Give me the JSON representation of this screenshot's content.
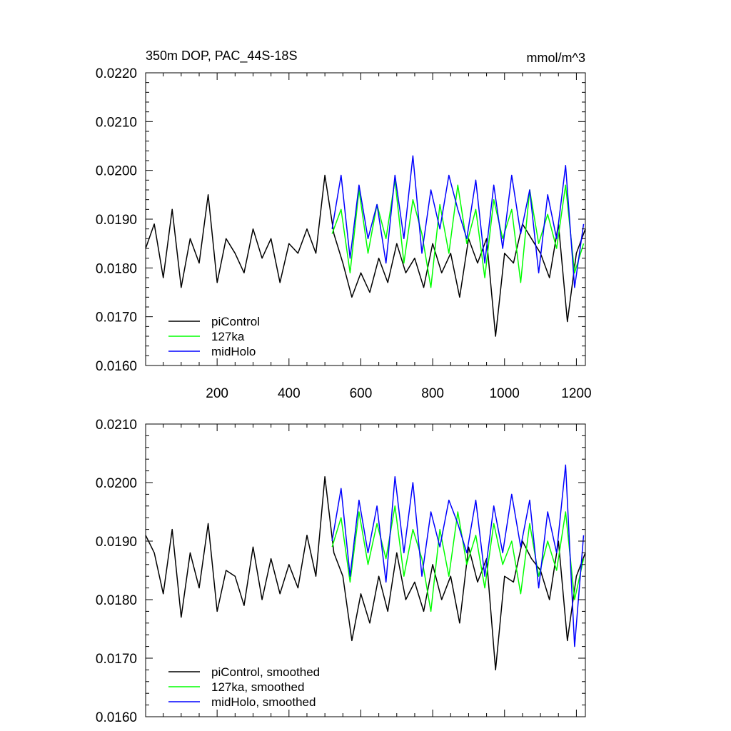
{
  "chart_data": [
    {
      "type": "line",
      "title": "350m DOP, PAC_44S-18S",
      "units_label": "mmol/m^3",
      "xlim": [
        1,
        1225
      ],
      "ylim": [
        0.016,
        0.022
      ],
      "x_ticks": [
        200,
        400,
        600,
        800,
        1000,
        1200
      ],
      "x_tick_labels": [
        "200",
        "400",
        "600",
        "800",
        "1000",
        "1200"
      ],
      "y_ticks": [
        0.016,
        0.017,
        0.018,
        0.019,
        0.02,
        0.021,
        0.022
      ],
      "y_tick_labels": [
        "0.0160",
        "0.0170",
        "0.0180",
        "0.0190",
        "0.0200",
        "0.0210",
        "0.0220"
      ],
      "legend_position": "bottom-left",
      "series": [
        {
          "name": "piControl",
          "color": "#000000",
          "x": [
            1,
            25,
            50,
            75,
            100,
            125,
            150,
            175,
            200,
            225,
            250,
            275,
            300,
            325,
            350,
            375,
            400,
            425,
            450,
            475,
            500,
            525,
            550,
            575,
            600,
            625,
            650,
            675,
            700,
            725,
            750,
            775,
            800,
            825,
            850,
            875,
            900,
            925,
            950,
            975,
            1000,
            1025,
            1050,
            1075,
            1100,
            1125,
            1150,
            1175,
            1200,
            1225
          ],
          "y": [
            0.0184,
            0.0189,
            0.0178,
            0.0192,
            0.0176,
            0.0186,
            0.0181,
            0.0195,
            0.0177,
            0.0186,
            0.0183,
            0.0179,
            0.0188,
            0.0182,
            0.0186,
            0.0177,
            0.0185,
            0.0183,
            0.0188,
            0.0183,
            0.0199,
            0.0187,
            0.0181,
            0.0174,
            0.0179,
            0.0175,
            0.0182,
            0.0177,
            0.0185,
            0.0179,
            0.0182,
            0.0176,
            0.0185,
            0.0179,
            0.0183,
            0.0174,
            0.0186,
            0.0181,
            0.0186,
            0.0166,
            0.0183,
            0.0181,
            0.0189,
            0.0186,
            0.0183,
            0.0178,
            0.0189,
            0.0169,
            0.0183,
            0.0188
          ]
        },
        {
          "name": "127ka",
          "color": "#00ff00",
          "x": [
            520,
            545,
            570,
            595,
            620,
            645,
            670,
            695,
            720,
            745,
            770,
            795,
            820,
            845,
            870,
            895,
            920,
            945,
            970,
            995,
            1020,
            1045,
            1070,
            1095,
            1120,
            1145,
            1170,
            1195,
            1220
          ],
          "y": [
            0.0187,
            0.0192,
            0.0179,
            0.0196,
            0.0183,
            0.0193,
            0.0186,
            0.0198,
            0.0181,
            0.0194,
            0.0187,
            0.0176,
            0.0193,
            0.0183,
            0.0197,
            0.0185,
            0.0192,
            0.0178,
            0.0194,
            0.0186,
            0.0192,
            0.0177,
            0.0196,
            0.0185,
            0.0191,
            0.0184,
            0.0197,
            0.0179,
            0.0185
          ]
        },
        {
          "name": "midHolo",
          "color": "#0000ff",
          "x": [
            520,
            545,
            570,
            595,
            620,
            645,
            670,
            695,
            720,
            745,
            770,
            795,
            820,
            845,
            870,
            895,
            920,
            945,
            970,
            995,
            1020,
            1045,
            1070,
            1095,
            1120,
            1145,
            1170,
            1195,
            1220
          ],
          "y": [
            0.0188,
            0.0199,
            0.0182,
            0.0197,
            0.0186,
            0.0193,
            0.0181,
            0.0199,
            0.0186,
            0.0203,
            0.0183,
            0.0196,
            0.0188,
            0.0199,
            0.0192,
            0.0186,
            0.0198,
            0.0181,
            0.0197,
            0.0184,
            0.0199,
            0.0187,
            0.0196,
            0.0179,
            0.0195,
            0.0186,
            0.0201,
            0.0176,
            0.0189
          ]
        }
      ]
    },
    {
      "type": "line",
      "xlim": [
        1,
        1225
      ],
      "ylim": [
        0.016,
        0.021
      ],
      "x_ticks": [
        200,
        400,
        600,
        800,
        1000,
        1200
      ],
      "y_ticks": [
        0.016,
        0.017,
        0.018,
        0.019,
        0.02,
        0.021
      ],
      "y_tick_labels": [
        "0.0160",
        "0.0170",
        "0.0180",
        "0.0190",
        "0.0200",
        "0.0210"
      ],
      "legend_position": "bottom-left",
      "series": [
        {
          "name": "piControl, smoothed",
          "color": "#000000",
          "x": [
            1,
            25,
            50,
            75,
            100,
            125,
            150,
            175,
            200,
            225,
            250,
            275,
            300,
            325,
            350,
            375,
            400,
            425,
            450,
            475,
            500,
            525,
            550,
            575,
            600,
            625,
            650,
            675,
            700,
            725,
            750,
            775,
            800,
            825,
            850,
            875,
            900,
            925,
            950,
            975,
            1000,
            1025,
            1050,
            1075,
            1100,
            1125,
            1150,
            1175,
            1200,
            1225
          ],
          "y": [
            0.0191,
            0.0188,
            0.0181,
            0.0192,
            0.0177,
            0.0188,
            0.0182,
            0.0193,
            0.0178,
            0.0185,
            0.0184,
            0.0179,
            0.0189,
            0.018,
            0.0187,
            0.0181,
            0.0186,
            0.0182,
            0.0191,
            0.0184,
            0.0201,
            0.0188,
            0.0184,
            0.0173,
            0.0181,
            0.0176,
            0.0184,
            0.0178,
            0.0188,
            0.018,
            0.0183,
            0.0178,
            0.0186,
            0.018,
            0.0184,
            0.0176,
            0.0189,
            0.0183,
            0.0187,
            0.0168,
            0.0184,
            0.0183,
            0.019,
            0.0187,
            0.0185,
            0.018,
            0.019,
            0.0173,
            0.0184,
            0.0188
          ]
        },
        {
          "name": "127ka, smoothed",
          "color": "#00ff00",
          "x": [
            520,
            545,
            570,
            595,
            620,
            645,
            670,
            695,
            720,
            745,
            770,
            795,
            820,
            845,
            870,
            895,
            920,
            945,
            970,
            995,
            1020,
            1045,
            1070,
            1095,
            1120,
            1145,
            1170,
            1195,
            1220
          ],
          "y": [
            0.0189,
            0.0194,
            0.0183,
            0.0195,
            0.0186,
            0.0193,
            0.0187,
            0.0196,
            0.0184,
            0.0192,
            0.0187,
            0.0178,
            0.0192,
            0.0184,
            0.0195,
            0.0186,
            0.0191,
            0.0182,
            0.0193,
            0.0186,
            0.019,
            0.0181,
            0.0193,
            0.0184,
            0.019,
            0.0185,
            0.0195,
            0.018,
            0.0187
          ]
        },
        {
          "name": "midHolo, smoothed",
          "color": "#0000ff",
          "x": [
            520,
            545,
            570,
            595,
            620,
            645,
            670,
            695,
            720,
            745,
            770,
            795,
            820,
            845,
            870,
            895,
            920,
            945,
            970,
            995,
            1020,
            1045,
            1070,
            1095,
            1120,
            1145,
            1170,
            1195,
            1220
          ],
          "y": [
            0.019,
            0.0199,
            0.0184,
            0.0197,
            0.0188,
            0.0196,
            0.0183,
            0.0201,
            0.0188,
            0.02,
            0.0184,
            0.0195,
            0.0189,
            0.0197,
            0.0193,
            0.0188,
            0.0197,
            0.0184,
            0.0196,
            0.0188,
            0.0198,
            0.0189,
            0.0197,
            0.0182,
            0.0195,
            0.0188,
            0.0203,
            0.0172,
            0.0191
          ]
        }
      ]
    }
  ]
}
